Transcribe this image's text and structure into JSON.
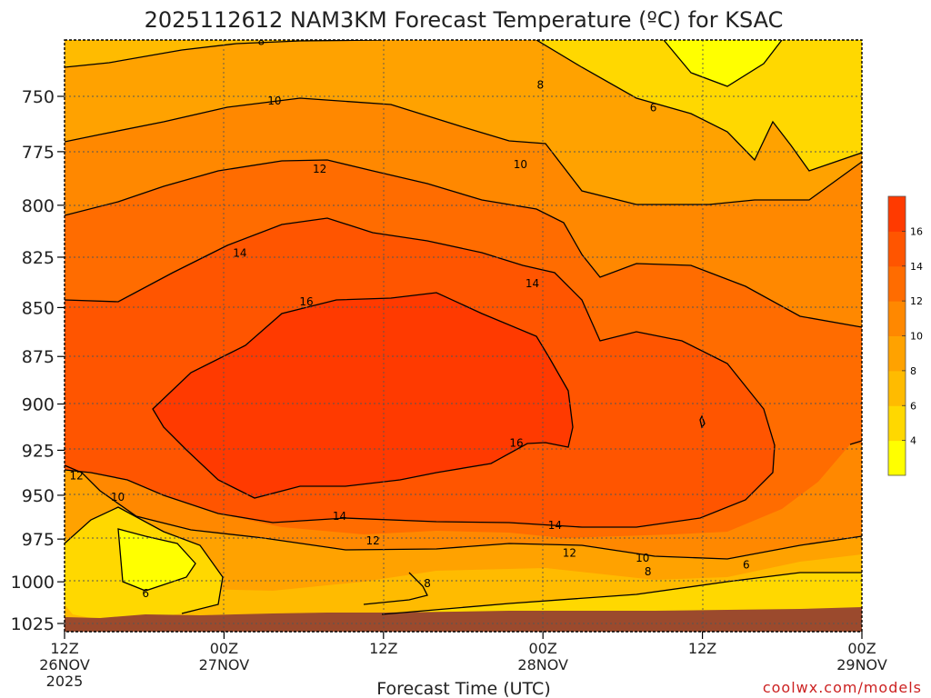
{
  "chart_data": {
    "type": "heatmap",
    "title": "2025112612 NAM3KM Forecast Temperature (ºC) for KSAC",
    "xlabel": "Forecast Time (UTC)",
    "ylabel": "",
    "x_ticks": [
      {
        "top": "12Z",
        "mid": "26NOV",
        "bottom": "2025",
        "hours": 0
      },
      {
        "top": "00Z",
        "mid": "27NOV",
        "bottom": "",
        "hours": 12
      },
      {
        "top": "12Z",
        "mid": "",
        "bottom": "",
        "hours": 24
      },
      {
        "top": "00Z",
        "mid": "28NOV",
        "bottom": "",
        "hours": 36
      },
      {
        "top": "12Z",
        "mid": "",
        "bottom": "",
        "hours": 48
      },
      {
        "top": "00Z",
        "mid": "29NOV",
        "bottom": "",
        "hours": 60
      }
    ],
    "xlim_hours": [
      0,
      60
    ],
    "y_ticks": [
      "750",
      "775",
      "800",
      "825",
      "850",
      "875",
      "900",
      "925",
      "950",
      "975",
      "1000",
      "1025"
    ],
    "ylim_hpa": [
      720,
      1030
    ],
    "colorbar": {
      "levels": [
        2,
        4,
        6,
        8,
        10,
        12,
        14,
        16,
        18
      ],
      "tick_labels": [
        "4",
        "6",
        "8",
        "10",
        "12",
        "14",
        "16"
      ],
      "colors": [
        "#ffff00",
        "#ffd800",
        "#ffbb00",
        "#ffa200",
        "#ff8800",
        "#ff6c00",
        "#ff5500",
        "#ff3a00"
      ]
    },
    "contour_labels": [
      {
        "value": "8",
        "hours": 14.8,
        "hpa": 726
      },
      {
        "value": "8",
        "hours": 35.8,
        "hpa": 745
      },
      {
        "value": "6",
        "hours": 44.3,
        "hpa": 755
      },
      {
        "value": "10",
        "hours": 15.8,
        "hpa": 752
      },
      {
        "value": "10",
        "hours": 34.3,
        "hpa": 781
      },
      {
        "value": "12",
        "hours": 19.2,
        "hpa": 783
      },
      {
        "value": "14",
        "hours": 13.2,
        "hpa": 823
      },
      {
        "value": "14",
        "hours": 35.2,
        "hpa": 838
      },
      {
        "value": "16",
        "hours": 18.2,
        "hpa": 847
      },
      {
        "value": "16",
        "hours": 34.0,
        "hpa": 921
      },
      {
        "value": "12",
        "hours": 0.9,
        "hpa": 939
      },
      {
        "value": "10",
        "hours": 4.0,
        "hpa": 951
      },
      {
        "value": "14",
        "hours": 20.7,
        "hpa": 962
      },
      {
        "value": "12",
        "hours": 23.2,
        "hpa": 976
      },
      {
        "value": "14",
        "hours": 36.9,
        "hpa": 967
      },
      {
        "value": "12",
        "hours": 38.0,
        "hpa": 983
      },
      {
        "value": "10",
        "hours": 43.5,
        "hpa": 986
      },
      {
        "value": "8",
        "hours": 43.9,
        "hpa": 994
      },
      {
        "value": "6",
        "hours": 51.3,
        "hpa": 990
      },
      {
        "value": "6",
        "hours": 6.1,
        "hpa": 1007
      },
      {
        "value": "8",
        "hours": 27.3,
        "hpa": 1001
      }
    ],
    "grid": true,
    "underground": "1025-1030 hPa shaded brown"
  },
  "credit": "coolwx.com/models",
  "colors": {
    "ground": "#9b4a2d",
    "grid": "#777777"
  }
}
